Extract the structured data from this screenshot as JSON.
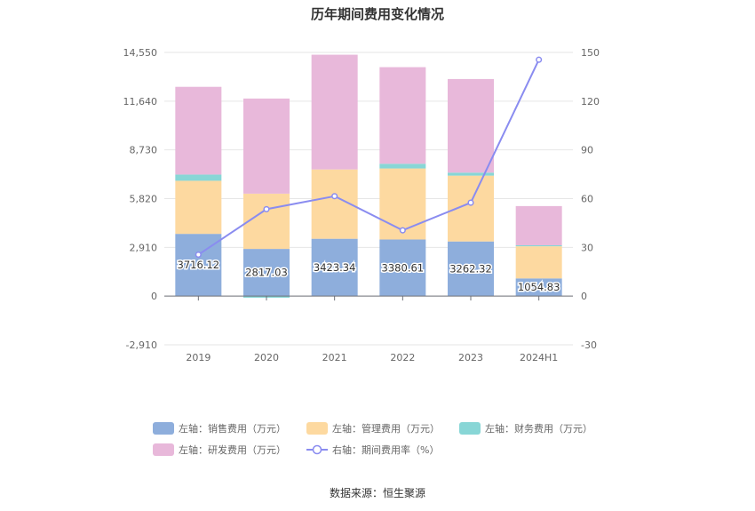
{
  "title": "历年期间费用变化情况",
  "source": "数据来源：恒生聚源",
  "chart_data": {
    "type": "bar",
    "stacked": true,
    "categories": [
      "2019",
      "2020",
      "2021",
      "2022",
      "2023",
      "2024H1"
    ],
    "left_axis": {
      "ticks": [
        14550,
        11640,
        8730,
        5820,
        2910,
        0,
        -2910
      ],
      "tick_labels": [
        "14,550",
        "11,640",
        "8,730",
        "5,820",
        "2,910",
        "0",
        "-2,910"
      ],
      "ylim": [
        -2910,
        14550
      ]
    },
    "right_axis": {
      "ticks": [
        150,
        120,
        90,
        60,
        30,
        0,
        -30
      ],
      "tick_labels": [
        "150",
        "120",
        "90",
        "60",
        "30",
        "0",
        "-30"
      ],
      "ylim": [
        -30,
        150
      ]
    },
    "series": [
      {
        "name": "左轴：销售费用（万元）",
        "axis": "left",
        "color": "#8eaedc",
        "values": [
          3716.12,
          2817.03,
          3423.34,
          3380.61,
          3262.32,
          1054.83
        ],
        "labels": [
          "3716.12",
          "2817.03",
          "3423.34",
          "3380.61",
          "3262.32",
          "1054.83"
        ]
      },
      {
        "name": "左轴：管理费用（万元）",
        "axis": "left",
        "color": "#fdd9a0",
        "values": [
          3170,
          3300,
          4140,
          4240,
          3930,
          1920
        ]
      },
      {
        "name": "左轴：财务费用（万元）",
        "axis": "left",
        "color": "#88d6d6",
        "values": [
          370,
          -100,
          0,
          280,
          180,
          60
        ]
      },
      {
        "name": "左轴：研发费用（万元）",
        "axis": "left",
        "color": "#e8b8da",
        "values": [
          5240,
          5680,
          6850,
          5770,
          5590,
          2340
        ]
      },
      {
        "name": "右轴：期间费用率（%）",
        "axis": "right",
        "type": "line",
        "color": "#8a8cf0",
        "values": [
          25.5,
          53.5,
          61.5,
          40.5,
          57.5,
          145.5
        ]
      }
    ],
    "legend_position": "bottom",
    "grid": true
  }
}
